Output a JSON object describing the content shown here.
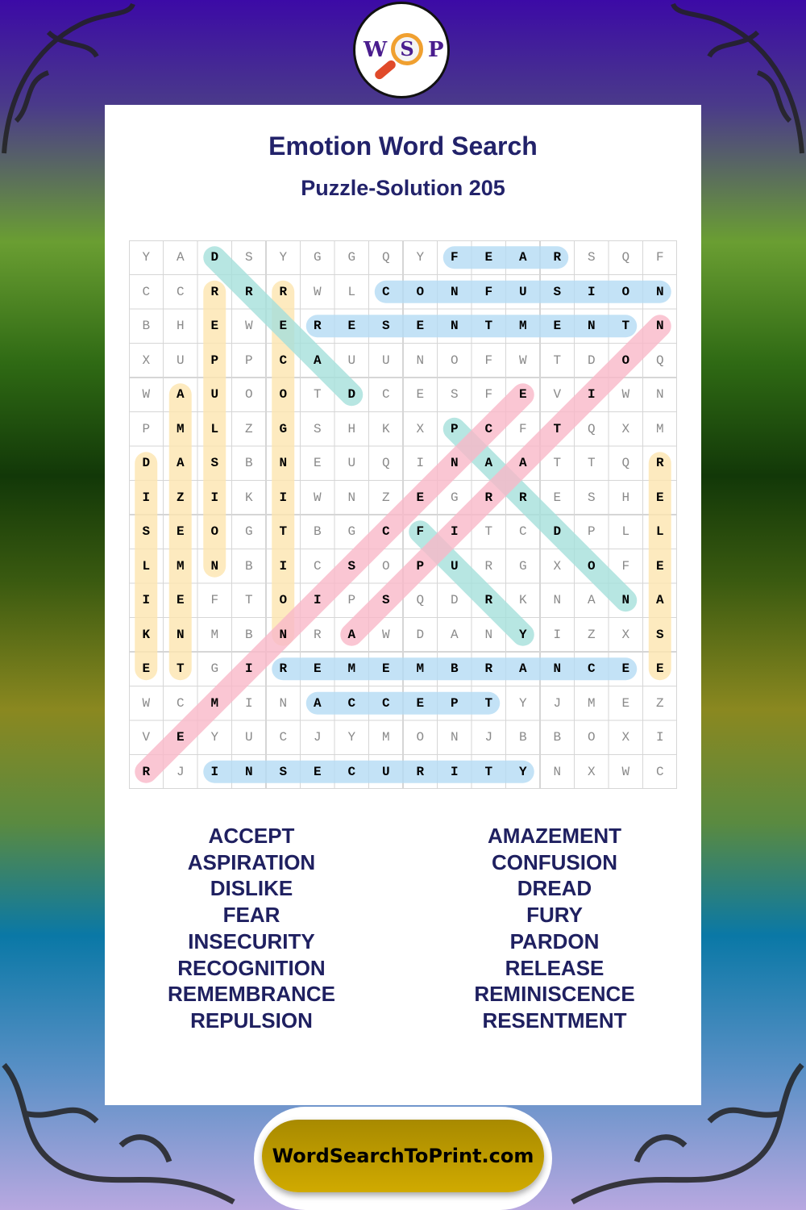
{
  "logo": {
    "letters": [
      "W",
      "S",
      "P"
    ]
  },
  "title": "Emotion Word Search",
  "subtitle": "Puzzle-Solution 205",
  "grid_rows": [
    "YADSYGGQYFEARSQF",
    "CCRRRWLCONFUSION",
    "BHEWERESENTMENTN",
    "XUPPCAUUNOFWTDOQ",
    "WAUOOTDCESFEVIWN",
    "PMLZGSHKXPCFTQXM",
    "DASBNEUQINAATTQR",
    "IZIKIWNZEGRRESHE",
    "SEOGTBGCFITCDPLL",
    "LMNBICSOPURGXOFE",
    "IEFTOIPSQDRKNANA",
    "KNMBNRAWDANYIZXS",
    "ETGIREMEMBRANCEE",
    "WCMINACCEPTYJMEZ",
    "VEYUCJYMONJBBOXI",
    "RJINSECURITYNXWC"
  ],
  "highlight_colors": {
    "horizontal": "#b5dcf4",
    "vertical": "#fde6b0",
    "diag_down": "#a6e0dc",
    "diag_up": "#f9b9c9"
  },
  "solutions": [
    {
      "word": "FEAR",
      "start": [
        0,
        9
      ],
      "end": [
        0,
        12
      ],
      "dir": "horizontal"
    },
    {
      "word": "CONFUSION",
      "start": [
        1,
        7
      ],
      "end": [
        1,
        15
      ],
      "dir": "horizontal"
    },
    {
      "word": "RESENTMENT",
      "start": [
        2,
        5
      ],
      "end": [
        2,
        14
      ],
      "dir": "horizontal"
    },
    {
      "word": "REMEMBRANCE",
      "start": [
        12,
        4
      ],
      "end": [
        12,
        14
      ],
      "dir": "horizontal"
    },
    {
      "word": "ACCEPT",
      "start": [
        13,
        5
      ],
      "end": [
        13,
        10
      ],
      "dir": "horizontal"
    },
    {
      "word": "INSECURITY",
      "start": [
        15,
        2
      ],
      "end": [
        15,
        11
      ],
      "dir": "horizontal"
    },
    {
      "word": "REPULSION",
      "start": [
        1,
        2
      ],
      "end": [
        9,
        2
      ],
      "dir": "vertical"
    },
    {
      "word": "RECOGNITION",
      "start": [
        1,
        4
      ],
      "end": [
        11,
        4
      ],
      "dir": "vertical"
    },
    {
      "word": "AMAZEMENT",
      "start": [
        4,
        1
      ],
      "end": [
        12,
        1
      ],
      "dir": "vertical"
    },
    {
      "word": "DISLIKE",
      "start": [
        6,
        0
      ],
      "end": [
        12,
        0
      ],
      "dir": "vertical"
    },
    {
      "word": "RELEASE",
      "start": [
        6,
        15
      ],
      "end": [
        12,
        15
      ],
      "dir": "vertical"
    },
    {
      "word": "DREAD",
      "start": [
        0,
        2
      ],
      "end": [
        4,
        6
      ],
      "dir": "diag_down"
    },
    {
      "word": "PARDON",
      "start": [
        5,
        9
      ],
      "end": [
        10,
        14
      ],
      "dir": "diag_down"
    },
    {
      "word": "FURY",
      "start": [
        8,
        8
      ],
      "end": [
        11,
        11
      ],
      "dir": "diag_down"
    },
    {
      "word": "REMINISCENCE",
      "start": [
        15,
        0
      ],
      "end": [
        4,
        11
      ],
      "dir": "diag_up"
    },
    {
      "word": "ASPIRATION",
      "start": [
        11,
        6
      ],
      "end": [
        2,
        15
      ],
      "dir": "diag_up"
    }
  ],
  "word_list": {
    "left": [
      "ACCEPT",
      "ASPIRATION",
      "DISLIKE",
      "FEAR",
      "INSECURITY",
      "RECOGNITION",
      "REMEMBRANCE",
      "REPULSION"
    ],
    "right": [
      "AMAZEMENT",
      "CONFUSION",
      "DREAD",
      "FURY",
      "PARDON",
      "RELEASE",
      "REMINISCENCE",
      "RESENTMENT"
    ]
  },
  "footer": {
    "site": "WordSearchToPrint.com"
  }
}
